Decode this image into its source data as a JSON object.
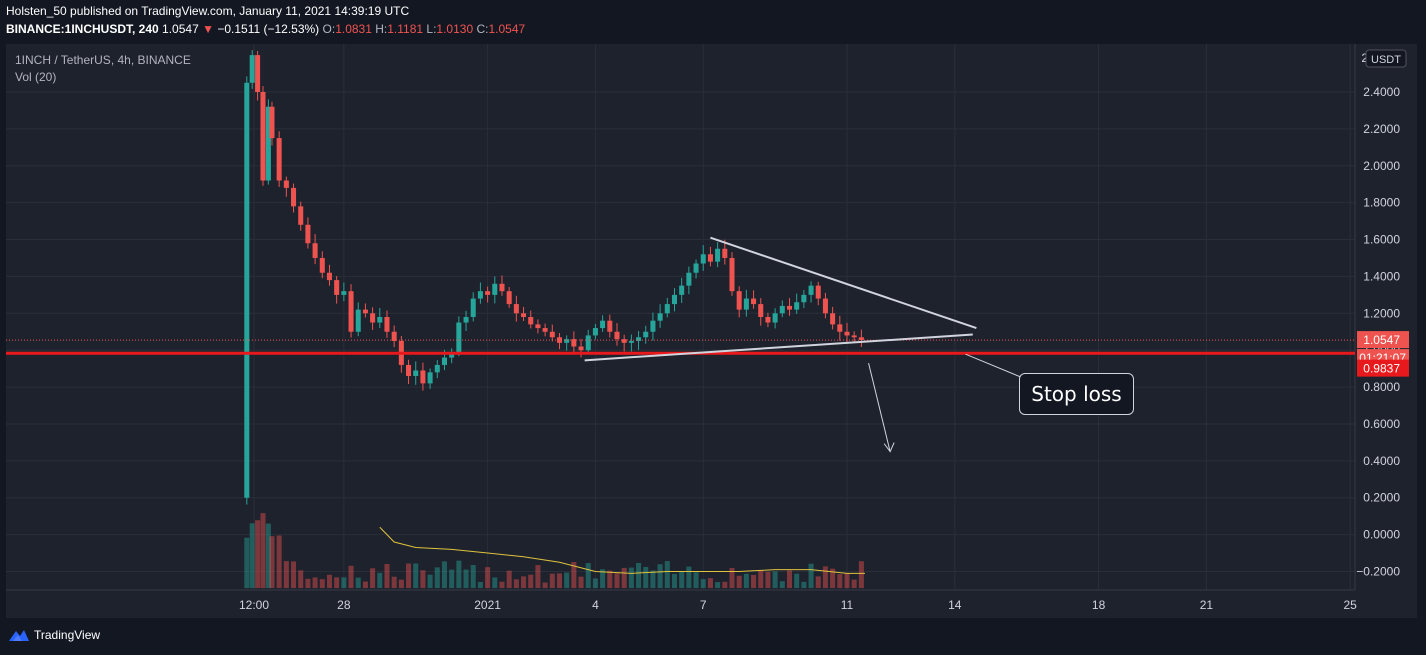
{
  "header": {
    "publish_line": "Holsten_50 published on TradingView.com, January 11, 2021 14:39:19 UTC",
    "symbol": "BINANCE:1INCHUSDT, 240",
    "last": "1.0547",
    "change": "−0.1511 (−12.53%)",
    "o_label": "O:",
    "o_value": "1.0831",
    "h_label": "H:",
    "h_value": "1.1181",
    "l_label": "L:",
    "l_value": "1.0130",
    "c_label": "C:",
    "c_value": "1.0547"
  },
  "legend": {
    "title": "1INCH / TetherUS, 4h, BINANCE",
    "volume": "Vol (20)"
  },
  "footer": {
    "brand": "TradingView"
  },
  "annotations": {
    "stop_loss": "Stop loss"
  },
  "colors": {
    "up": "#26a69a",
    "down": "#ef5350",
    "background": "#131722",
    "panel": "#1e222d",
    "stop_line": "#e8191c",
    "volume_ma": "#e0c33c"
  },
  "chart_data": {
    "type": "candlestick",
    "title": "1INCH / TetherUS, 4h, BINANCE",
    "currency": "USDT",
    "ylim": [
      -0.3,
      2.66
    ],
    "y_ticks": [
      "2.4000",
      "2.2000",
      "2.0000",
      "1.8000",
      "1.6000",
      "1.4000",
      "1.2000",
      "1.0000",
      "0.8000",
      "0.6000",
      "0.4000",
      "0.2000",
      "0.0000",
      "−0.2000"
    ],
    "x_ticks": [
      {
        "label": "12:00",
        "day": 25.5
      },
      {
        "label": "28",
        "day": 28
      },
      {
        "label": "2021",
        "day": 32
      },
      {
        "label": "4",
        "day": 35
      },
      {
        "label": "7",
        "day": 38
      },
      {
        "label": "11",
        "day": 42
      },
      {
        "label": "14",
        "day": 45
      },
      {
        "label": "18",
        "day": 49
      },
      {
        "label": "21",
        "day": 52
      },
      {
        "label": "25",
        "day": 56
      }
    ],
    "price_labels": {
      "last": "1.0547",
      "countdown": "01:21:07",
      "stop": "0.9837",
      "axis_edge": "2"
    },
    "stop_loss_level": 0.9837,
    "last_price": 1.0547,
    "close_path": [
      [
        25.25,
        0.2
      ],
      [
        25.3,
        2.45
      ],
      [
        25.45,
        2.6
      ],
      [
        25.6,
        2.4
      ],
      [
        25.75,
        1.92
      ],
      [
        25.9,
        2.32
      ],
      [
        26.0,
        2.15
      ],
      [
        26.2,
        1.92
      ],
      [
        26.4,
        1.88
      ],
      [
        26.6,
        1.78
      ],
      [
        26.8,
        1.68
      ],
      [
        27.0,
        1.58
      ],
      [
        27.2,
        1.5
      ],
      [
        27.4,
        1.42
      ],
      [
        27.6,
        1.38
      ],
      [
        27.8,
        1.3
      ],
      [
        28.0,
        1.32
      ],
      [
        28.2,
        1.1
      ],
      [
        28.4,
        1.22
      ],
      [
        28.6,
        1.2
      ],
      [
        28.8,
        1.15
      ],
      [
        29.0,
        1.18
      ],
      [
        29.2,
        1.1
      ],
      [
        29.4,
        1.05
      ],
      [
        29.6,
        0.92
      ],
      [
        29.8,
        0.86
      ],
      [
        30.0,
        0.89
      ],
      [
        30.2,
        0.82
      ],
      [
        30.4,
        0.88
      ],
      [
        30.6,
        0.92
      ],
      [
        30.8,
        0.96
      ],
      [
        31.0,
        0.99
      ],
      [
        31.2,
        1.15
      ],
      [
        31.4,
        1.18
      ],
      [
        31.6,
        1.28
      ],
      [
        31.8,
        1.32
      ],
      [
        32.0,
        1.3
      ],
      [
        32.2,
        1.36
      ],
      [
        32.4,
        1.32
      ],
      [
        32.6,
        1.25
      ],
      [
        32.8,
        1.2
      ],
      [
        33.0,
        1.18
      ],
      [
        33.2,
        1.14
      ],
      [
        33.4,
        1.12
      ],
      [
        33.6,
        1.1
      ],
      [
        33.8,
        1.07
      ],
      [
        34.0,
        1.04
      ],
      [
        34.2,
        1.06
      ],
      [
        34.4,
        1.02
      ],
      [
        34.6,
        1.0
      ],
      [
        34.8,
        1.08
      ],
      [
        35.0,
        1.12
      ],
      [
        35.2,
        1.16
      ],
      [
        35.4,
        1.1
      ],
      [
        35.6,
        1.06
      ],
      [
        35.8,
        1.04
      ],
      [
        36.0,
        1.05
      ],
      [
        36.2,
        1.07
      ],
      [
        36.4,
        1.1
      ],
      [
        36.6,
        1.16
      ],
      [
        36.8,
        1.2
      ],
      [
        37.0,
        1.25
      ],
      [
        37.2,
        1.3
      ],
      [
        37.4,
        1.35
      ],
      [
        37.6,
        1.42
      ],
      [
        37.8,
        1.47
      ],
      [
        38.0,
        1.52
      ],
      [
        38.2,
        1.48
      ],
      [
        38.4,
        1.55
      ],
      [
        38.6,
        1.5
      ],
      [
        38.8,
        1.32
      ],
      [
        39.0,
        1.22
      ],
      [
        39.2,
        1.28
      ],
      [
        39.4,
        1.25
      ],
      [
        39.6,
        1.18
      ],
      [
        39.8,
        1.15
      ],
      [
        40.0,
        1.2
      ],
      [
        40.2,
        1.24
      ],
      [
        40.4,
        1.22
      ],
      [
        40.6,
        1.26
      ],
      [
        40.8,
        1.3
      ],
      [
        41.0,
        1.35
      ],
      [
        41.2,
        1.28
      ],
      [
        41.4,
        1.2
      ],
      [
        41.6,
        1.14
      ],
      [
        41.8,
        1.1
      ],
      [
        42.0,
        1.08
      ],
      [
        42.2,
        1.07
      ],
      [
        42.4,
        1.055
      ]
    ],
    "trendlines": [
      {
        "name": "upper-resistance",
        "from": [
          38.2,
          1.61
        ],
        "to": [
          45.6,
          1.12
        ]
      },
      {
        "name": "lower-support",
        "from": [
          34.7,
          0.945
        ],
        "to": [
          45.5,
          1.085
        ]
      }
    ],
    "projection_arrow": {
      "from": [
        42.6,
        0.93
      ],
      "to": [
        43.2,
        0.45
      ]
    },
    "volume_ma": [
      [
        29.0,
        0.04
      ],
      [
        29.4,
        -0.04
      ],
      [
        30.0,
        -0.07
      ],
      [
        31.0,
        -0.08
      ],
      [
        32.0,
        -0.1
      ],
      [
        33.0,
        -0.12
      ],
      [
        34.0,
        -0.15
      ],
      [
        35.0,
        -0.2
      ],
      [
        36.0,
        -0.21
      ],
      [
        37.0,
        -0.2
      ],
      [
        38.0,
        -0.2
      ],
      [
        39.0,
        -0.2
      ],
      [
        40.0,
        -0.19
      ],
      [
        41.0,
        -0.19
      ],
      [
        42.0,
        -0.21
      ],
      [
        42.5,
        -0.21
      ]
    ],
    "volume_base": -0.29
  }
}
